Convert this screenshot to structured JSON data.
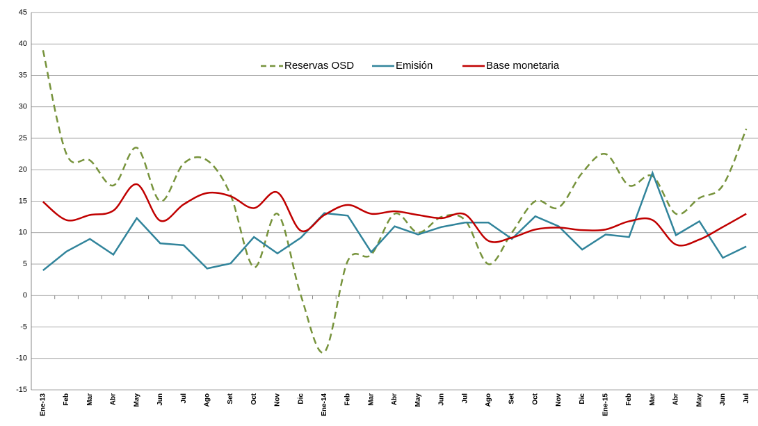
{
  "chart_data": {
    "type": "line",
    "categories": [
      "Ene-13",
      "Feb",
      "Mar",
      "Abr",
      "May",
      "Jun",
      "Jul",
      "Ago",
      "Set",
      "Oct",
      "Nov",
      "Dic",
      "Ene-14",
      "Feb",
      "Mar",
      "Abr",
      "May",
      "Jun",
      "Jul",
      "Ago",
      "Set",
      "Oct",
      "Nov",
      "Dic",
      "Ene-15",
      "Feb",
      "Mar",
      "Abr",
      "May",
      "Jun",
      "Jul"
    ],
    "series": [
      {
        "name": "Reservas OSD",
        "color": "#77933c",
        "dash": true,
        "smooth": true,
        "values": [
          39,
          22.5,
          21.5,
          17.5,
          23.5,
          15,
          21,
          21.5,
          16,
          4.5,
          13,
          0,
          -9,
          5.5,
          6.5,
          13,
          10,
          12.5,
          12,
          5,
          10,
          15,
          14,
          19.5,
          22.5,
          17.5,
          19,
          13,
          15.5,
          17.5,
          26.5
        ]
      },
      {
        "name": "Emisión",
        "color": "#31849b",
        "dash": false,
        "smooth": false,
        "values": [
          4,
          7,
          9,
          6.5,
          12.3,
          8.3,
          8,
          4.3,
          5.1,
          9.3,
          6.7,
          9.2,
          13.1,
          12.7,
          6.9,
          11,
          9.7,
          10.9,
          11.6,
          11.6,
          9,
          12.6,
          11,
          7.3,
          9.7,
          9.3,
          19.5,
          9.6,
          11.8,
          6,
          7.8
        ]
      },
      {
        "name": "Base monetaria",
        "color": "#c00000",
        "dash": false,
        "smooth": true,
        "values": [
          14.9,
          12,
          12.8,
          13.5,
          17.7,
          11.9,
          14.5,
          16.3,
          15.8,
          13.9,
          16.4,
          10.3,
          12.8,
          14.4,
          13,
          13.4,
          12.8,
          12.3,
          12.9,
          8.7,
          9.2,
          10.5,
          10.8,
          10.4,
          10.5,
          11.8,
          12,
          8.1,
          8.9,
          10.9,
          13
        ]
      }
    ],
    "ylim": [
      -15,
      45
    ],
    "yticks": [
      -15,
      -10,
      -5,
      0,
      5,
      10,
      15,
      20,
      25,
      30,
      35,
      40,
      45
    ],
    "grid": true
  }
}
